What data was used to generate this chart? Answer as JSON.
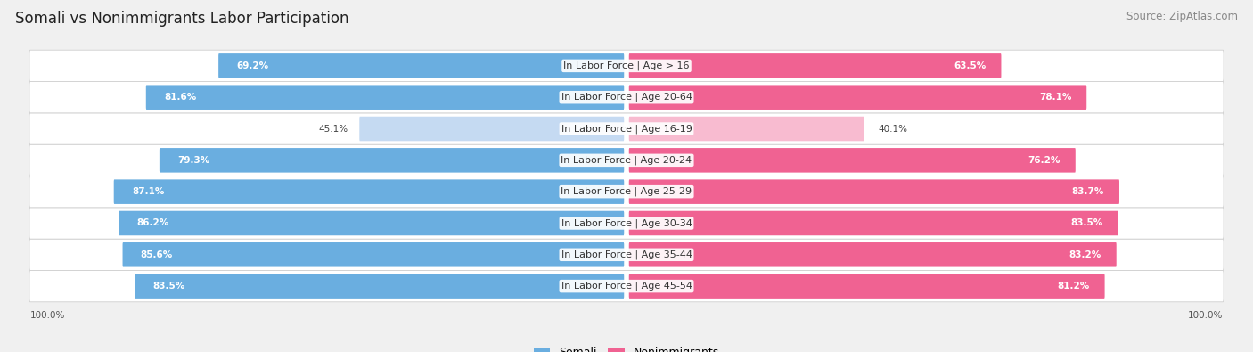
{
  "title": "Somali vs Nonimmigrants Labor Participation",
  "source": "Source: ZipAtlas.com",
  "categories": [
    "In Labor Force | Age > 16",
    "In Labor Force | Age 20-64",
    "In Labor Force | Age 16-19",
    "In Labor Force | Age 20-24",
    "In Labor Force | Age 25-29",
    "In Labor Force | Age 30-34",
    "In Labor Force | Age 35-44",
    "In Labor Force | Age 45-54"
  ],
  "somali_values": [
    69.2,
    81.6,
    45.1,
    79.3,
    87.1,
    86.2,
    85.6,
    83.5
  ],
  "nonimmigrant_values": [
    63.5,
    78.1,
    40.1,
    76.2,
    83.7,
    83.5,
    83.2,
    81.2
  ],
  "somali_color_dark": "#6aaee0",
  "somali_color_light": "#c5daf2",
  "nonimmigrant_color_dark": "#f06292",
  "nonimmigrant_color_light": "#f8bbd0",
  "bg_color": "#f0f0f0",
  "row_bg_color": "#ffffff",
  "title_fontsize": 12,
  "source_fontsize": 8.5,
  "label_fontsize": 8,
  "value_fontsize": 7.5,
  "legend_fontsize": 9,
  "axis_label_fontsize": 7.5,
  "light_indices": [
    2
  ],
  "max_value": 100.0
}
